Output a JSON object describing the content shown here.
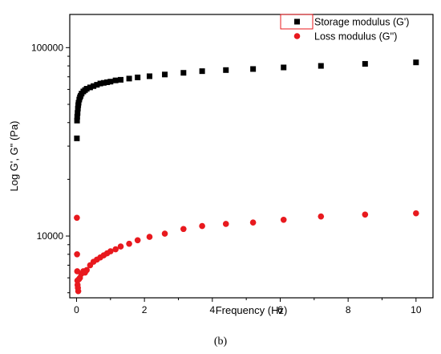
{
  "chart_data": {
    "type": "scatter",
    "xlabel": "Frequency (Hz)",
    "ylabel": "Log G', G\" (Pa)",
    "xlim": [
      -0.2,
      10.5
    ],
    "ylim": [
      4700,
      150000
    ],
    "yscale": "log",
    "x_ticks": [
      0,
      2,
      4,
      6,
      8,
      10
    ],
    "y_ticks": [
      10000,
      100000
    ],
    "y_tick_labels": [
      "10000",
      "100000"
    ],
    "legend_position": "top-right",
    "grid": false,
    "series": [
      {
        "name": "Storage modulus (G')",
        "marker": "square",
        "color": "#000000",
        "x": [
          0.01,
          0.015,
          0.02,
          0.03,
          0.04,
          0.05,
          0.06,
          0.08,
          0.1,
          0.12,
          0.15,
          0.2,
          0.25,
          0.3,
          0.4,
          0.5,
          0.6,
          0.7,
          0.8,
          0.9,
          1.0,
          1.15,
          1.3,
          1.55,
          1.8,
          2.15,
          2.6,
          3.15,
          3.7,
          4.4,
          5.2,
          6.1,
          7.2,
          8.5,
          10.0
        ],
        "y": [
          33000,
          41000,
          43000,
          45000,
          47500,
          49500,
          51000,
          53000,
          54500,
          55500,
          57000,
          58500,
          59500,
          60500,
          61500,
          62500,
          63500,
          64500,
          65000,
          65500,
          66000,
          67000,
          67500,
          68500,
          69500,
          70500,
          72000,
          73500,
          75000,
          76000,
          77000,
          78500,
          80000,
          82000,
          83500
        ]
      },
      {
        "name": "Loss modulus (G'')",
        "marker": "circle",
        "color": "#e8191e",
        "x": [
          0.01,
          0.015,
          0.02,
          0.025,
          0.03,
          0.04,
          0.05,
          0.07,
          0.1,
          0.14,
          0.2,
          0.25,
          0.3,
          0.4,
          0.5,
          0.6,
          0.7,
          0.8,
          0.9,
          1.0,
          1.15,
          1.3,
          1.55,
          1.8,
          2.15,
          2.6,
          3.15,
          3.7,
          4.4,
          5.2,
          6.1,
          7.2,
          8.5,
          10.0
        ],
        "y": [
          12500,
          8000,
          6500,
          5800,
          5500,
          5300,
          5100,
          5900,
          6000,
          6300,
          6500,
          6400,
          6600,
          7000,
          7300,
          7500,
          7700,
          7900,
          8100,
          8300,
          8500,
          8800,
          9100,
          9500,
          9900,
          10300,
          10900,
          11300,
          11600,
          11800,
          12200,
          12700,
          13000,
          13200
        ]
      }
    ]
  },
  "caption": "(b)"
}
